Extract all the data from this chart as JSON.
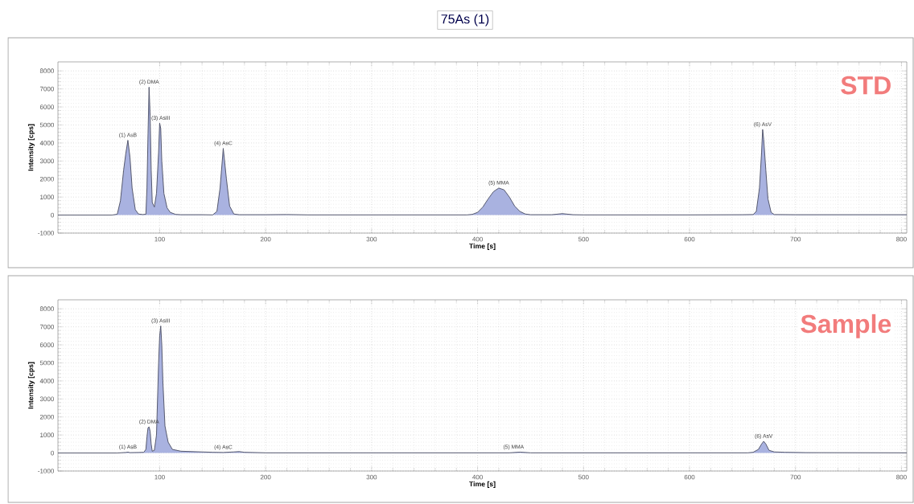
{
  "chart_data": [
    {
      "type": "area",
      "title": "75As (1)",
      "xlabel": "Time [s]",
      "ylabel": "Intensity [cps]",
      "xlim": [
        4,
        805
      ],
      "ylim": [
        -1000,
        8500
      ],
      "xticks": [
        100,
        200,
        300,
        400,
        500,
        600,
        700,
        800
      ],
      "yticks": [
        -1000,
        0,
        1000,
        2000,
        3000,
        4000,
        5000,
        6000,
        7000,
        8000
      ],
      "grid": true,
      "series": [
        {
          "color": "#a9b2e0",
          "x": [
            4,
            55,
            60,
            63,
            66,
            68,
            70,
            72,
            74,
            77,
            80,
            84,
            87,
            88,
            89,
            90,
            91,
            92,
            93,
            95,
            97,
            99,
            100,
            101,
            102,
            104,
            107,
            110,
            115,
            120,
            140,
            150,
            154,
            157,
            160,
            163,
            166,
            170,
            175,
            200,
            220,
            240,
            300,
            390,
            395,
            400,
            405,
            410,
            415,
            420,
            425,
            430,
            435,
            440,
            445,
            450,
            470,
            480,
            490,
            500,
            600,
            650,
            660,
            663,
            666,
            668,
            669,
            670,
            672,
            674,
            677,
            680,
            700,
            805
          ],
          "values": [
            0,
            0,
            50,
            800,
            2500,
            3400,
            4150,
            3200,
            1500,
            300,
            60,
            30,
            50,
            1500,
            4500,
            7100,
            5500,
            2500,
            700,
            450,
            1200,
            3500,
            5100,
            4800,
            3000,
            1200,
            400,
            150,
            40,
            20,
            20,
            10,
            200,
            1500,
            3700,
            2000,
            500,
            60,
            20,
            20,
            30,
            10,
            10,
            10,
            40,
            150,
            450,
            900,
            1300,
            1500,
            1400,
            1000,
            500,
            200,
            60,
            20,
            20,
            80,
            20,
            10,
            10,
            20,
            30,
            200,
            1500,
            3500,
            4750,
            4200,
            2500,
            900,
            150,
            30,
            20,
            20
          ]
        }
      ],
      "annotations": [
        "STD",
        {
          "text": "(1) AsB",
          "x": 70,
          "y": 4150
        },
        {
          "text": "(2) DMA",
          "x": 90,
          "y": 7100
        },
        {
          "text": "(3) AsIII",
          "x": 101,
          "y": 5100
        },
        {
          "text": "(4) AsC",
          "x": 160,
          "y": 3700
        },
        {
          "text": "(5) MMA",
          "x": 420,
          "y": 1500
        },
        {
          "text": "(6) AsV",
          "x": 669,
          "y": 4750
        }
      ]
    },
    {
      "type": "area",
      "xlabel": "Time [s]",
      "ylabel": "Intensity [cps]",
      "xlim": [
        4,
        805
      ],
      "ylim": [
        -1000,
        8500
      ],
      "xticks": [
        100,
        200,
        300,
        400,
        500,
        600,
        700,
        800
      ],
      "yticks": [
        -1000,
        0,
        1000,
        2000,
        3000,
        4000,
        5000,
        6000,
        7000,
        8000
      ],
      "grid": true,
      "series": [
        {
          "color": "#a9b2e0",
          "x": [
            4,
            60,
            68,
            70,
            72,
            80,
            85,
            87,
            88,
            89,
            90,
            91,
            92,
            93,
            95,
            97,
            98,
            99,
            100,
            101,
            102,
            103,
            105,
            108,
            112,
            120,
            150,
            160,
            170,
            175,
            180,
            200,
            300,
            430,
            440,
            450,
            500,
            600,
            655,
            660,
            665,
            668,
            670,
            672,
            675,
            680,
            690,
            710,
            805
          ],
          "values": [
            0,
            0,
            30,
            50,
            20,
            30,
            40,
            200,
            900,
            1400,
            1450,
            1200,
            500,
            100,
            150,
            1000,
            3000,
            5000,
            6500,
            7050,
            6000,
            4000,
            1500,
            600,
            200,
            100,
            40,
            30,
            60,
            80,
            40,
            10,
            10,
            10,
            50,
            10,
            10,
            10,
            10,
            40,
            200,
            500,
            650,
            500,
            150,
            60,
            40,
            20,
            10
          ]
        }
      ],
      "annotations": [
        "Sample",
        {
          "text": "(1) AsB",
          "x": 70,
          "y": 50
        },
        {
          "text": "(2) DMA",
          "x": 90,
          "y": 1450
        },
        {
          "text": "(3) AsIII",
          "x": 101,
          "y": 7050
        },
        {
          "text": "(4) AsC",
          "x": 160,
          "y": 40
        },
        {
          "text": "(5) MMA",
          "x": 434,
          "y": 50
        },
        {
          "text": "(6) AsV",
          "x": 670,
          "y": 650
        }
      ]
    }
  ]
}
